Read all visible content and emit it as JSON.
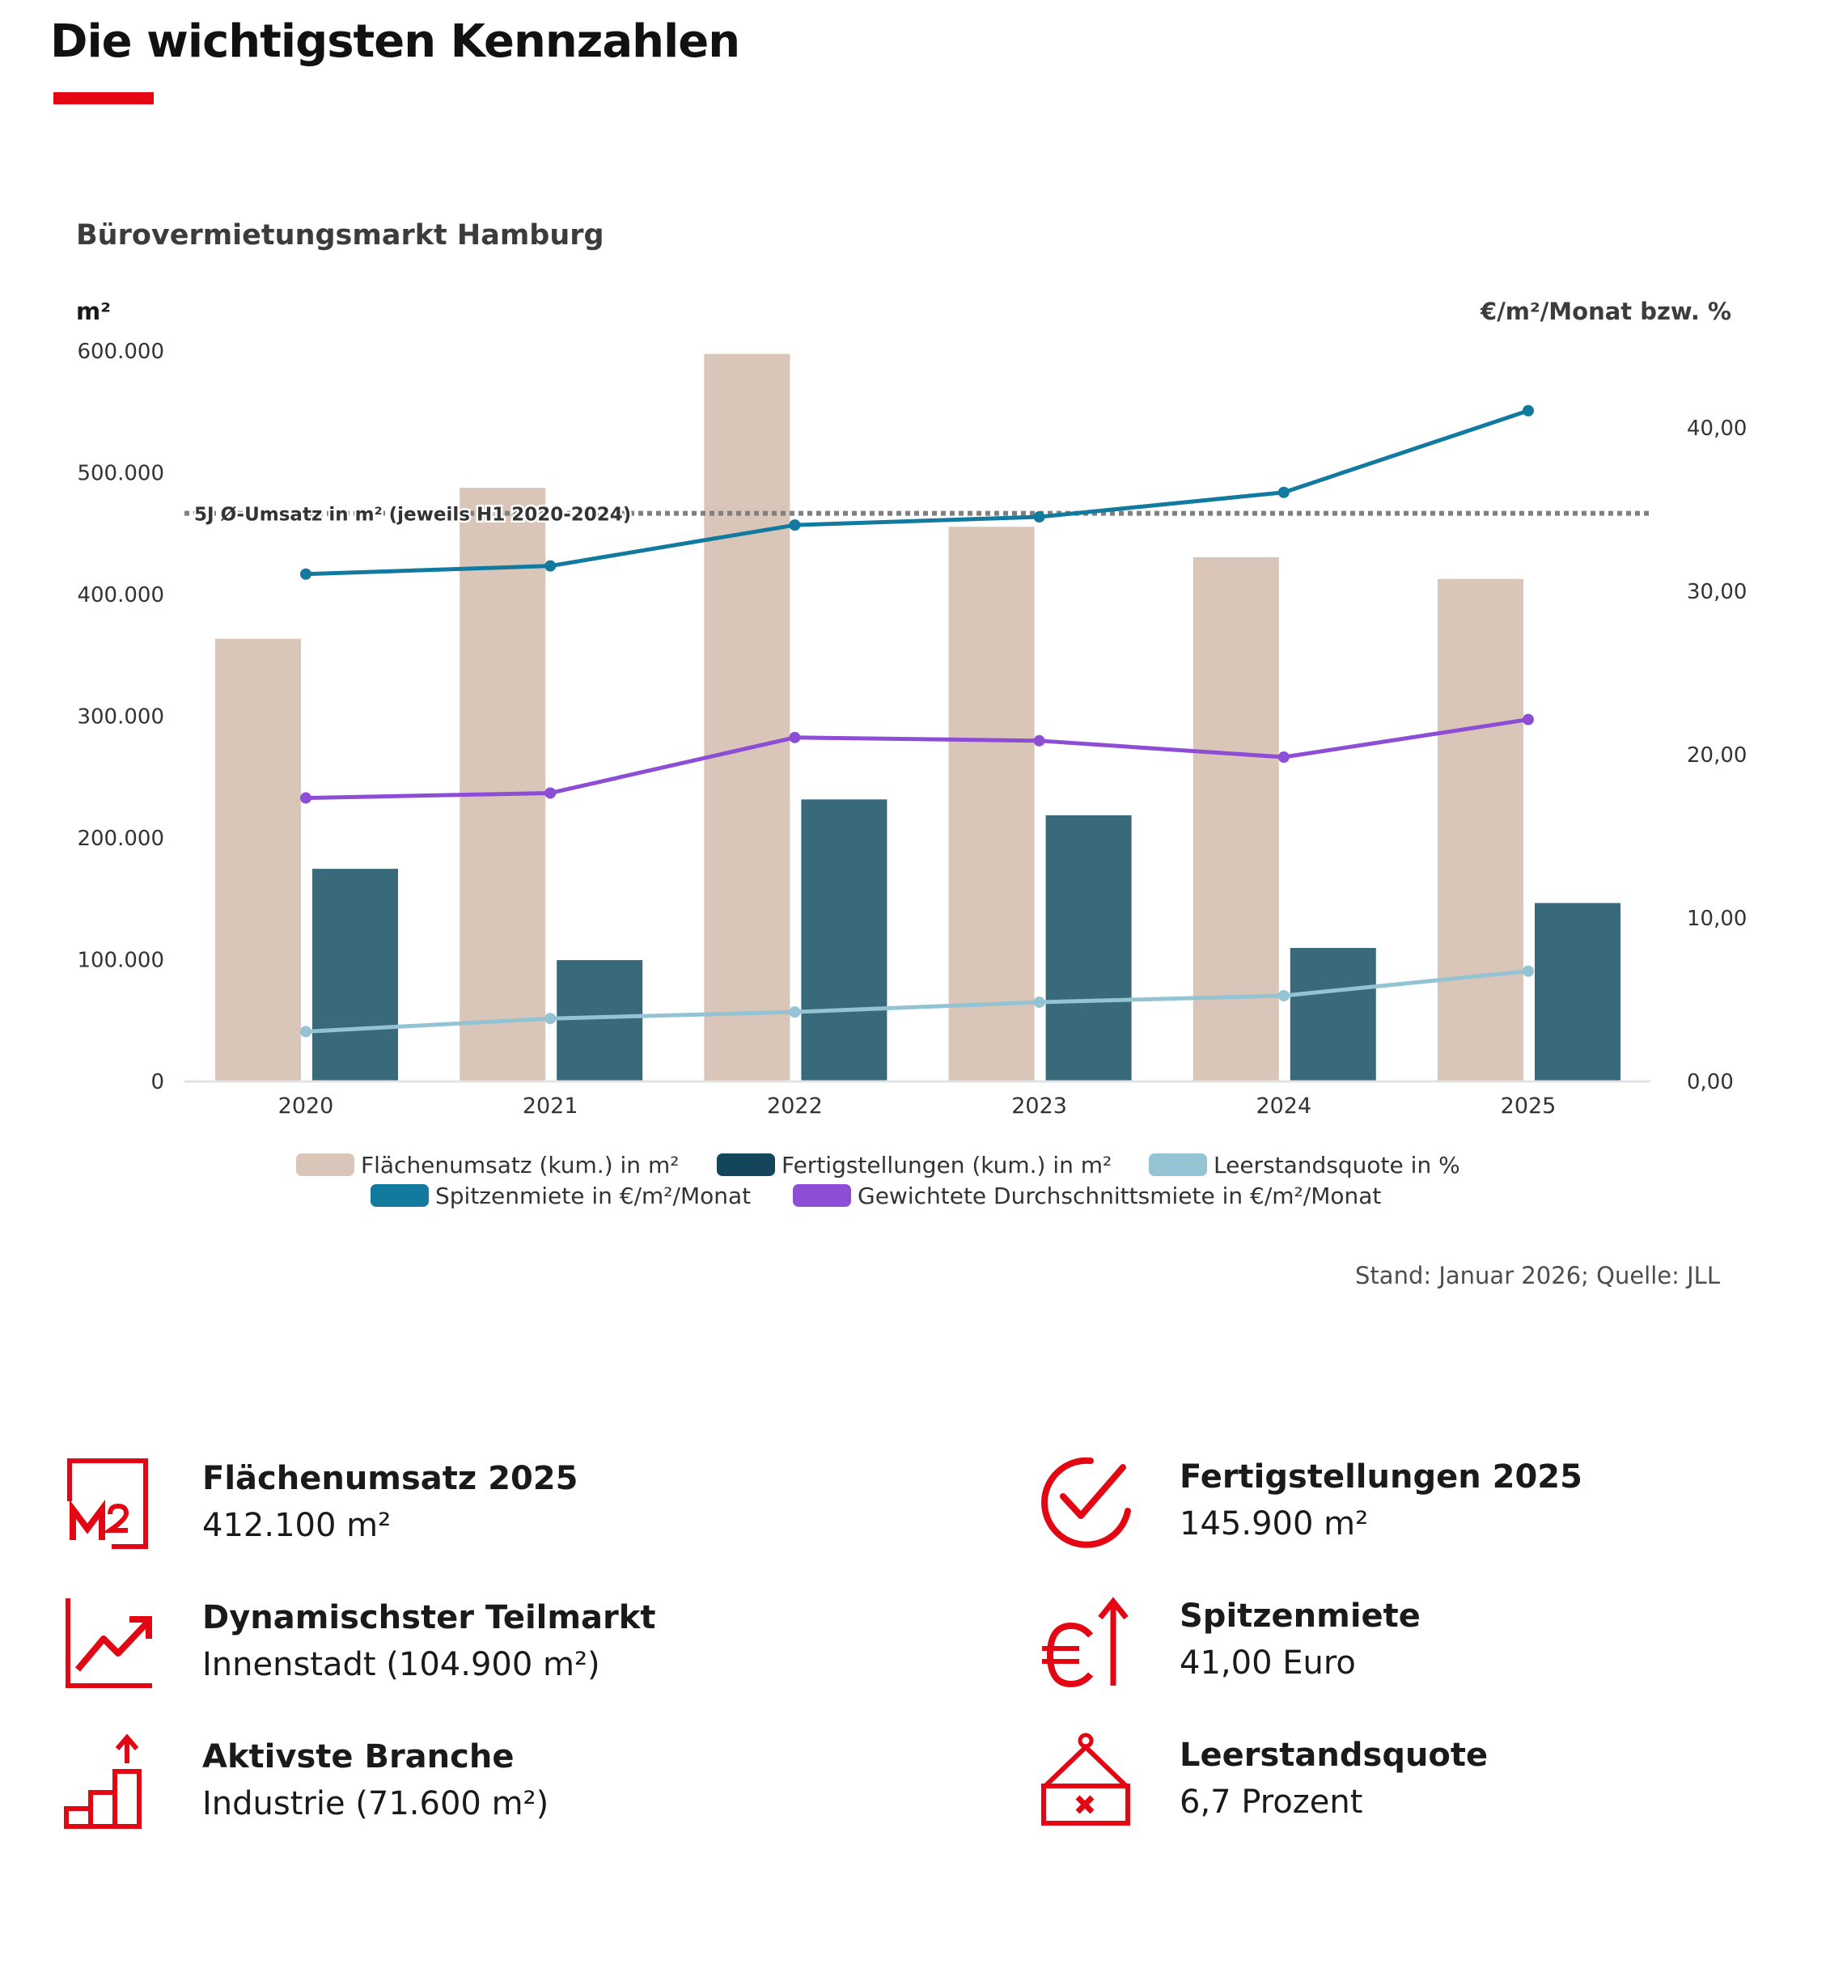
{
  "page": {
    "title": "Die wichtigsten Kennzahlen",
    "accent_color": "#e30613",
    "source": "Stand: Januar 2026; Quelle: JLL"
  },
  "chart_data": {
    "type": "bar",
    "title": "Bürovermietungsmarkt Hamburg",
    "ylabel": "m²",
    "ylabel_right": "€/m²/Monat bzw. %",
    "categories": [
      "2020",
      "2021",
      "2022",
      "2023",
      "2024",
      "2025"
    ],
    "ylim": [
      0,
      600000
    ],
    "y_ticks": [
      "0",
      "100.000",
      "200.000",
      "300.000",
      "400.000",
      "500.000",
      "600.000"
    ],
    "y_right_lim": [
      0,
      44.7
    ],
    "y_right_ticks": [
      "0,00",
      "10,00",
      "20,00",
      "30,00",
      "40,00"
    ],
    "grid": false,
    "legend_position": "bottom",
    "series": [
      {
        "name": "Flächenumsatz (kum.) in m²",
        "type": "bar",
        "axis": "left",
        "color": "#d9c6b8",
        "values": [
          363000,
          487000,
          597000,
          455000,
          430000,
          412100
        ]
      },
      {
        "name": "Fertigstellungen (kum.) in m²",
        "type": "bar",
        "axis": "left",
        "color": "#386a7c",
        "legend_color": "#13465b",
        "values": [
          174000,
          99000,
          231000,
          218000,
          109000,
          145900
        ]
      },
      {
        "name": "Leerstandsquote in %",
        "type": "line",
        "axis": "right",
        "color": "#94c4d4",
        "values": [
          3.0,
          3.8,
          4.2,
          4.8,
          5.2,
          6.7
        ]
      },
      {
        "name": "Spitzenmiete in €/m²/Monat",
        "type": "line",
        "axis": "right",
        "color": "#127a9e",
        "values": [
          31.0,
          31.5,
          34.0,
          34.5,
          36.0,
          41.0
        ]
      },
      {
        "name": "Gewichtete Durchschnittsmiete in €/m²/Monat",
        "type": "line",
        "axis": "right",
        "color": "#8d4dd4",
        "values": [
          17.3,
          17.6,
          21.0,
          20.8,
          19.8,
          22.1
        ]
      }
    ],
    "reference_line": {
      "label": "5J Ø-Umsatz in m² (jeweils H1 2020-2024)",
      "value": 466000,
      "color": "#808080"
    }
  },
  "kpis": [
    {
      "label": "Flächenumsatz 2025",
      "value": "412.100 m²",
      "icon": "square-meter-icon"
    },
    {
      "label": "Fertigstellungen 2025",
      "value": "145.900 m²",
      "icon": "checkmark-circle-icon"
    },
    {
      "label": "Dynamischster Teilmarkt",
      "value": "Innenstadt (104.900 m²)",
      "icon": "trend-chart-icon"
    },
    {
      "label": "Spitzenmiete",
      "value": "41,00 Euro",
      "icon": "euro-arrow-up-icon"
    },
    {
      "label": "Aktivste Branche",
      "value": "Industrie (71.600 m²)",
      "icon": "bar-steps-arrow-icon"
    },
    {
      "label": "Leerstandsquote",
      "value": "6,7 Prozent",
      "icon": "vacant-sign-icon"
    }
  ]
}
